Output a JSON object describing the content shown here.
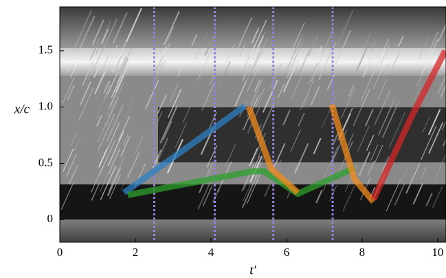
{
  "chart_data": {
    "type": "line",
    "x_label": "t′",
    "y_label": "x/c",
    "xlim": [
      0,
      10.22
    ],
    "ylim": [
      -0.2,
      1.89
    ],
    "xticks": [
      0,
      2,
      4,
      6,
      8,
      10
    ],
    "yticks": [
      0,
      0.5,
      {
        "value": 1,
        "label": "1.0"
      },
      1.5
    ],
    "vlines": {
      "color": "#9b7fe0",
      "values": [
        2.5,
        4.1,
        5.65,
        7.22
      ]
    },
    "series": [
      {
        "color": "#2f7fc0",
        "x": [
          1.7,
          4.9
        ],
        "values": [
          0.24,
          1.01
        ]
      },
      {
        "color": "#2ca02c",
        "x": [
          1.8,
          5.1,
          5.4,
          6.3,
          7.8
        ],
        "values": [
          0.22,
          0.43,
          0.43,
          0.23,
          0.46
        ]
      },
      {
        "color": "#f0891c",
        "x": [
          5.0,
          5.6,
          6.3,
          null,
          7.2,
          7.8,
          8.3
        ],
        "values": [
          1.0,
          0.45,
          0.24,
          null,
          1.02,
          0.36,
          0.16
        ]
      },
      {
        "color": "#d62728",
        "x": [
          8.3,
          9.3,
          10.2
        ],
        "values": [
          0.18,
          0.91,
          1.5
        ]
      }
    ]
  }
}
